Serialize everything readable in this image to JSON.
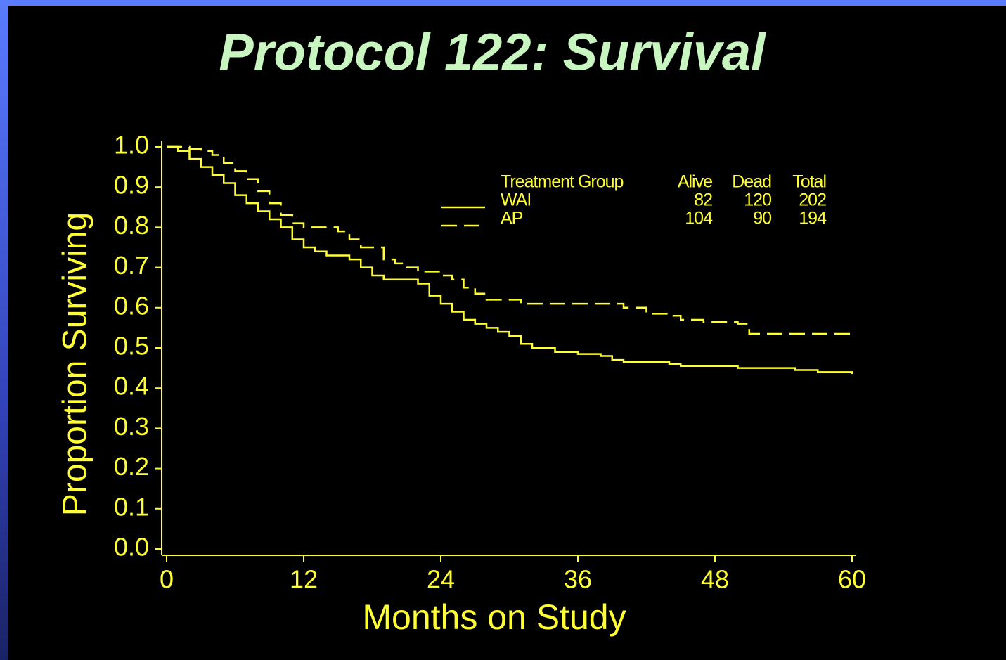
{
  "chart_data": {
    "type": "step",
    "title": "Protocol 122: Survival",
    "xlabel": "Months on Study",
    "ylabel": "Proportion Surviving",
    "xlim": [
      0,
      60
    ],
    "xticks": [
      0,
      12,
      24,
      36,
      48,
      60
    ],
    "ylim": [
      0,
      1
    ],
    "yticks": [
      {
        "value": 0,
        "label": "0.0"
      },
      0.1,
      0.2,
      0.3,
      0.4,
      0.5,
      0.6,
      0.7,
      0.8,
      0.9,
      {
        "value": 1,
        "label": "1.0"
      }
    ],
    "legend_columns": [
      "Treatment Group",
      "Alive",
      "Dead",
      "Total"
    ],
    "series": [
      {
        "name": "WAI",
        "color": "#ffff33",
        "dash": false,
        "alive": 82,
        "dead": 120,
        "total": 202,
        "x": [
          0,
          1,
          2,
          3,
          4,
          5,
          6,
          7,
          8,
          9,
          10,
          11,
          12,
          13,
          14,
          16,
          17,
          18,
          19,
          22,
          23,
          24,
          25,
          26,
          27,
          28,
          29,
          30,
          31,
          32,
          34,
          36,
          38,
          39,
          40,
          44,
          45,
          50,
          55,
          57,
          60
        ],
        "values": [
          1.0,
          0.99,
          0.97,
          0.95,
          0.93,
          0.91,
          0.88,
          0.86,
          0.84,
          0.82,
          0.8,
          0.77,
          0.75,
          0.74,
          0.73,
          0.72,
          0.7,
          0.68,
          0.67,
          0.66,
          0.63,
          0.61,
          0.59,
          0.57,
          0.56,
          0.55,
          0.54,
          0.53,
          0.51,
          0.5,
          0.49,
          0.485,
          0.48,
          0.47,
          0.465,
          0.46,
          0.455,
          0.45,
          0.445,
          0.44,
          0.435
        ]
      },
      {
        "name": "AP",
        "color": "#ffff33",
        "dash": true,
        "alive": 104,
        "dead": 90,
        "total": 194,
        "x": [
          0,
          2,
          3,
          4,
          5,
          6,
          7,
          8,
          9,
          10,
          11,
          12,
          15,
          16,
          17,
          19,
          20,
          21,
          22,
          24,
          25,
          26,
          27,
          28,
          31,
          40,
          42,
          44,
          45,
          47,
          50,
          51,
          60
        ],
        "values": [
          1.0,
          0.995,
          0.99,
          0.98,
          0.96,
          0.94,
          0.92,
          0.89,
          0.86,
          0.83,
          0.81,
          0.8,
          0.79,
          0.77,
          0.75,
          0.72,
          0.71,
          0.7,
          0.69,
          0.68,
          0.67,
          0.65,
          0.635,
          0.62,
          0.61,
          0.6,
          0.585,
          0.58,
          0.57,
          0.565,
          0.56,
          0.535,
          0.535
        ]
      }
    ]
  }
}
